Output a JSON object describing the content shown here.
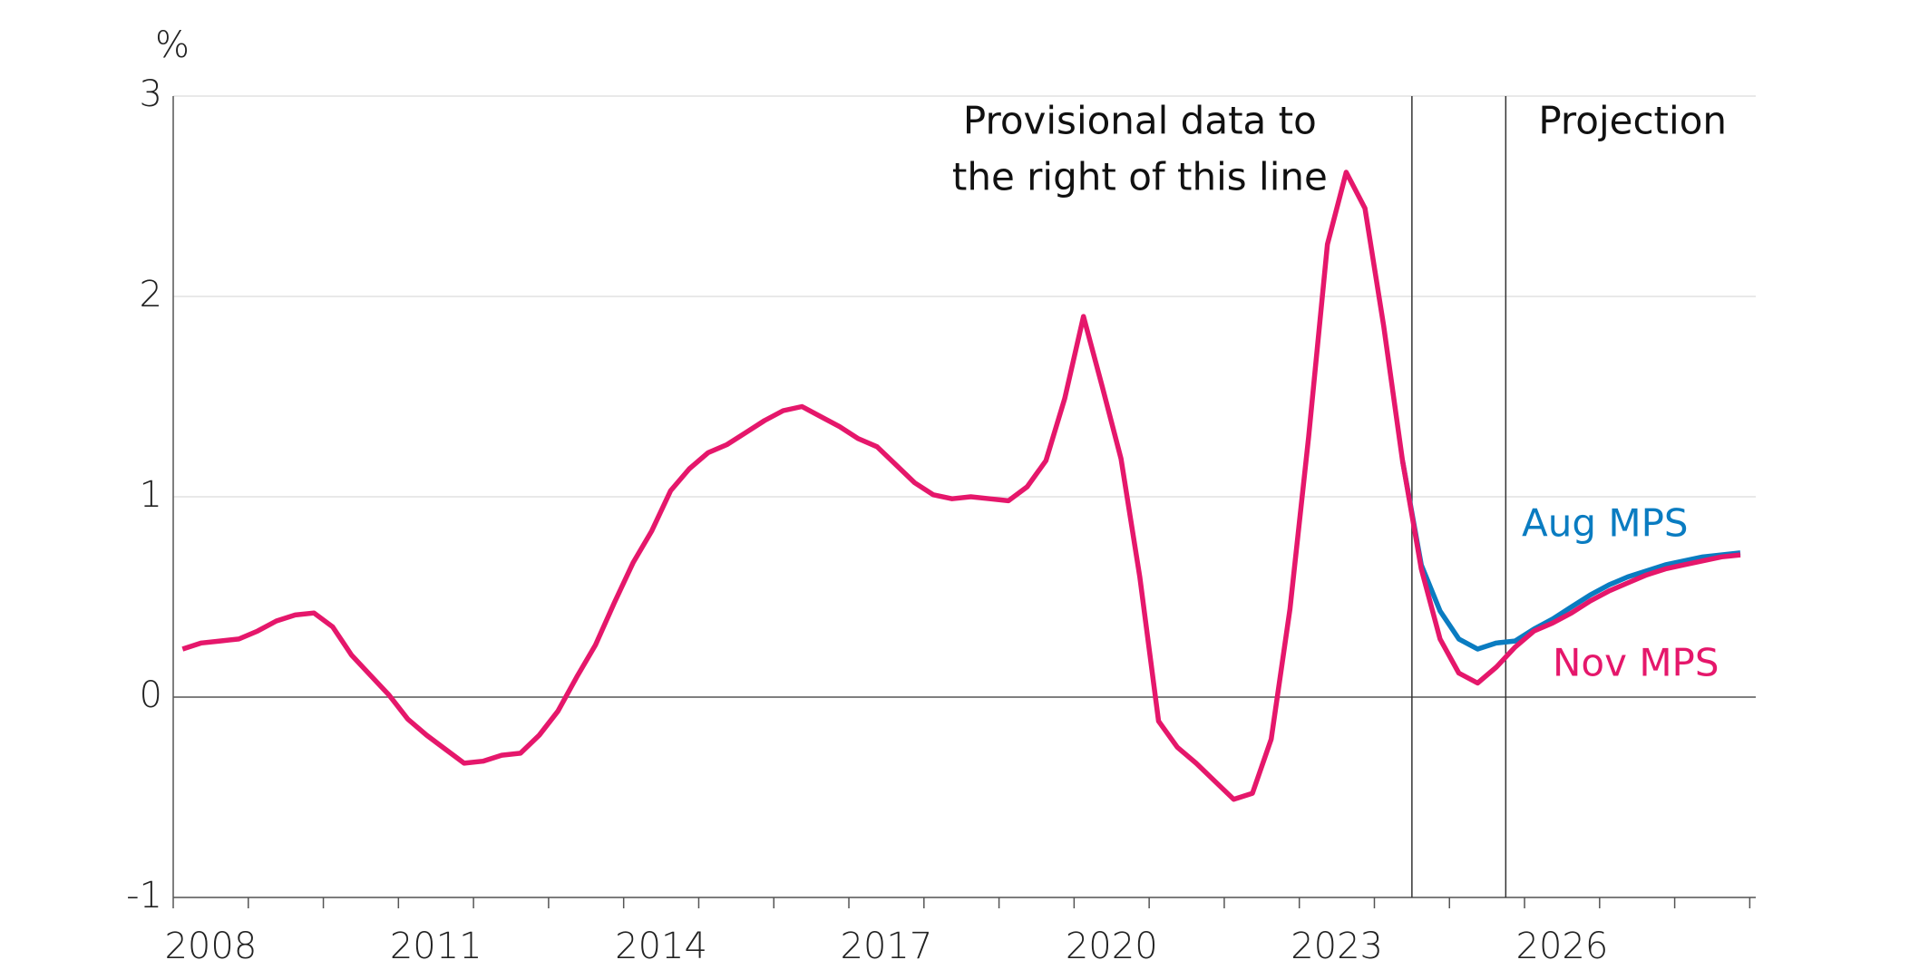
{
  "chart_data": {
    "type": "line",
    "y_label": "%",
    "x": [
      2008.125,
      2008.375,
      2008.625,
      2008.875,
      2009.125,
      2009.375,
      2009.625,
      2009.875,
      2010.125,
      2010.375,
      2010.625,
      2010.875,
      2011.125,
      2011.375,
      2011.625,
      2011.875,
      2012.125,
      2012.375,
      2012.625,
      2012.875,
      2013.125,
      2013.375,
      2013.625,
      2013.875,
      2014.125,
      2014.375,
      2014.625,
      2014.875,
      2015.125,
      2015.375,
      2015.625,
      2015.875,
      2016.125,
      2016.375,
      2016.625,
      2016.875,
      2017.125,
      2017.375,
      2017.625,
      2017.875,
      2018.125,
      2018.375,
      2018.625,
      2018.875,
      2019.125,
      2019.375,
      2019.625,
      2019.875,
      2020.125,
      2020.375,
      2020.625,
      2020.875,
      2021.125,
      2021.375,
      2021.625,
      2021.875,
      2022.125,
      2022.375,
      2022.625,
      2022.875,
      2023.125,
      2023.375,
      2023.625,
      2023.875,
      2024.125,
      2024.375,
      2024.625,
      2024.875,
      2025.125,
      2025.375,
      2025.625,
      2025.875,
      2026.125,
      2026.375,
      2026.625,
      2026.875,
      2027.125,
      2027.375,
      2027.625,
      2027.875,
      2028.125,
      2028.375,
      2028.625,
      2028.875
    ],
    "series": [
      {
        "name": "Aug MPS",
        "color": "#0a7cc1",
        "values": [
          null,
          null,
          null,
          null,
          null,
          null,
          null,
          null,
          null,
          null,
          null,
          null,
          null,
          null,
          null,
          null,
          null,
          null,
          null,
          null,
          null,
          null,
          null,
          null,
          null,
          null,
          null,
          null,
          null,
          null,
          null,
          null,
          null,
          null,
          null,
          null,
          null,
          null,
          null,
          null,
          null,
          null,
          null,
          null,
          null,
          null,
          null,
          null,
          null,
          null,
          null,
          null,
          null,
          null,
          null,
          null,
          null,
          null,
          null,
          null,
          null,
          null,
          null,
          null,
          null,
          1.18,
          0.66,
          0.43,
          0.29,
          0.24,
          0.27,
          0.28,
          0.34,
          0.39,
          0.45,
          0.51,
          0.56,
          0.6,
          0.63,
          0.66,
          0.68,
          0.7,
          0.71,
          0.72
        ]
      },
      {
        "name": "Nov MPS",
        "color": "#e5176b",
        "values": [
          0.24,
          0.27,
          0.28,
          0.29,
          0.33,
          0.38,
          0.41,
          0.42,
          0.35,
          0.21,
          0.11,
          0.01,
          -0.11,
          -0.19,
          -0.26,
          -0.33,
          -0.32,
          -0.29,
          -0.28,
          -0.19,
          -0.07,
          0.1,
          0.26,
          0.47,
          0.67,
          0.83,
          1.03,
          1.14,
          1.22,
          1.26,
          1.32,
          1.38,
          1.43,
          1.45,
          1.4,
          1.35,
          1.29,
          1.25,
          1.16,
          1.07,
          1.01,
          0.99,
          1.0,
          0.99,
          0.98,
          1.05,
          1.18,
          1.49,
          1.9,
          1.55,
          1.19,
          0.6,
          -0.12,
          -0.25,
          -0.33,
          -0.42,
          -0.51,
          -0.48,
          -0.21,
          0.44,
          1.3,
          2.26,
          2.62,
          2.44,
          1.85,
          1.18,
          0.64,
          0.29,
          0.12,
          0.07,
          0.15,
          0.25,
          0.33,
          0.37,
          0.42,
          0.48,
          0.53,
          0.57,
          0.61,
          0.64,
          0.66,
          0.68,
          0.7,
          0.71
        ]
      }
    ],
    "xlim": [
      2008,
      2029.08
    ],
    "xticks": [
      {
        "value": 2008.5,
        "label": "2008"
      },
      {
        "value": 2011.5,
        "label": "2011"
      },
      {
        "value": 2014.5,
        "label": "2014"
      },
      {
        "value": 2017.5,
        "label": "2017"
      },
      {
        "value": 2020.5,
        "label": "2020"
      },
      {
        "value": 2023.5,
        "label": "2023"
      },
      {
        "value": 2026.5,
        "label": "2026"
      }
    ],
    "xminorticks": [
      2008,
      2009,
      2010,
      2011,
      2012,
      2013,
      2014,
      2015,
      2016,
      2017,
      2018,
      2019,
      2020,
      2021,
      2022,
      2023,
      2024,
      2025,
      2026,
      2027,
      2028,
      2029
    ],
    "ylim": [
      -1,
      3
    ],
    "yticks": [
      -1,
      0,
      1,
      2,
      3
    ],
    "grid": true,
    "vlines": [
      {
        "x": 2024.5,
        "text": [
          "Provisional data to",
          "the right of this line"
        ]
      },
      {
        "x": 2025.75,
        "text": [
          "Projection"
        ]
      }
    ]
  }
}
